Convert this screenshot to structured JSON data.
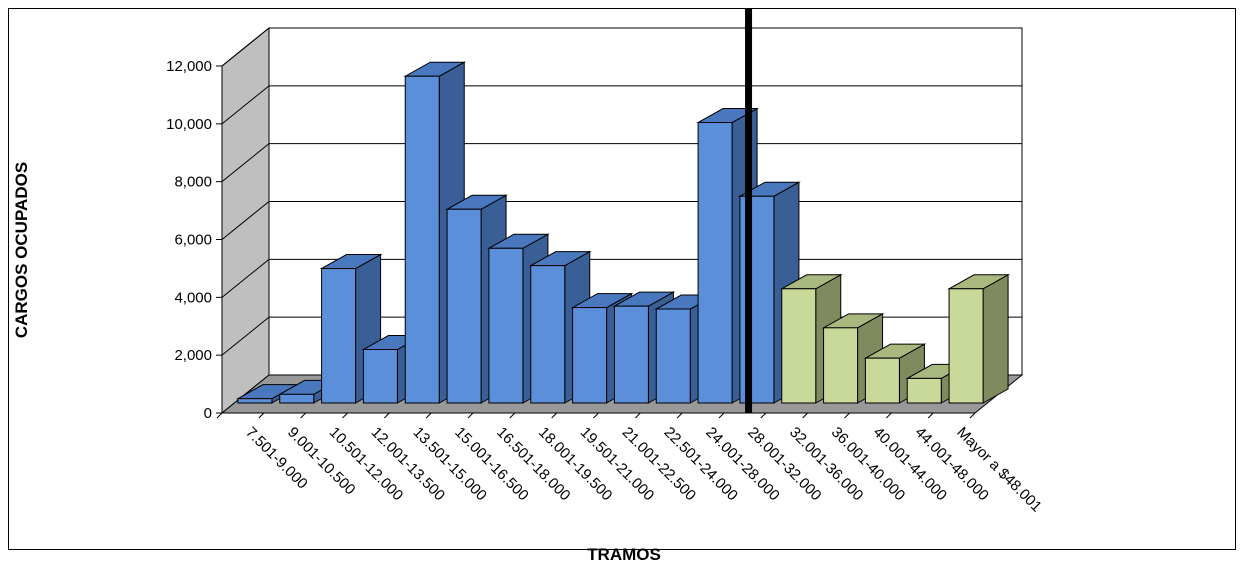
{
  "chart_data": {
    "type": "bar",
    "style": "3d-column",
    "xlabel": "TRAMOS",
    "ylabel": "CARGOS OCUPADOS",
    "ylim": [
      0,
      12000
    ],
    "yticks": [
      "0",
      "2,000",
      "4,000",
      "6,000",
      "8,000",
      "10,000",
      "12,000"
    ],
    "grid": true,
    "categories": [
      "7.501-9.000",
      "9.001-10.500",
      "10.501-12.000",
      "12.001-13.500",
      "13.501-15.000",
      "15.001-16.500",
      "16.501-18.000",
      "18.001-19.500",
      "19.501-21.000",
      "21.001-22.500",
      "22.501-24.000",
      "24.001-28.000",
      "28.001-32.000",
      "32.001-36.000",
      "36.001-40.000",
      "40.001-44.000",
      "44.001-48.000",
      "Mayor a $48.001"
    ],
    "values": [
      150,
      300,
      4650,
      1850,
      11300,
      6700,
      5350,
      4750,
      3300,
      3350,
      3250,
      9700,
      7150,
      3950,
      2600,
      1550,
      850,
      3950
    ],
    "colors": {
      "group1_front": "#5b8fd9",
      "group1_side": "#3a5f96",
      "group1_top": "#4a78bf",
      "group2_front": "#c8d99a",
      "group2_side": "#808a5f",
      "group2_top": "#a9b87e",
      "wall": "#bfbfbf",
      "floor": "#999999",
      "divider": "#000000"
    },
    "group2_start_index": 13
  }
}
